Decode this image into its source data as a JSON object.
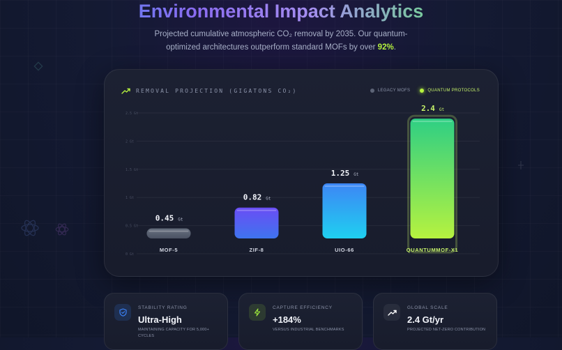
{
  "header": {
    "title": "Environmental Impact Analytics",
    "subtitle_before": "Projected cumulative atmospheric CO₂ removal by 2035. Our quantum-optimized architectures outperform standard MOFs by over ",
    "subtitle_highlight": "92%",
    "subtitle_after": "."
  },
  "chart_card": {
    "title": "REMOVAL PROJECTION (GIGATONS CO₂)",
    "title_icon": "trending-up-icon",
    "legend": [
      {
        "label": "LEGACY MOFS",
        "color": "#5d6477"
      },
      {
        "label": "QUANTUM PROTOCOLS",
        "color": "#b6f23f"
      }
    ]
  },
  "chart_data": {
    "type": "bar",
    "categories": [
      "MOF-5",
      "ZIF-8",
      "UIO-66",
      "QUANTUMMOF-X1"
    ],
    "values": [
      0.45,
      0.82,
      1.25,
      2.4
    ],
    "value_labels": [
      "0.45",
      "0.82",
      "1.25",
      "2.4"
    ],
    "value_unit": "Gt",
    "ylim": [
      0,
      2.5
    ],
    "yticks": [
      "0 Gt",
      "0.5 Gt",
      "1 Gt",
      "1.5 Gt",
      "2 Gt",
      "2.5 Gt"
    ],
    "grid": true,
    "legend_placement": "top-right",
    "bar_colors": [
      [
        "#68707f",
        "#4b5263"
      ],
      [
        "#6a4df5",
        "#3f74ee"
      ],
      [
        "#3d86f5",
        "#1fd0f0"
      ],
      [
        "#2ecf84",
        "#b6f23f"
      ]
    ],
    "highlight_color": "#c6f26a"
  },
  "stats": [
    {
      "icon": "shield-icon",
      "label": "STABILITY RATING",
      "value": "Ultra-High",
      "description": "MAINTAINING CAPACITY FOR 5,000+ CYCLES",
      "color": "#3b82f6"
    },
    {
      "icon": "lightning-icon",
      "label": "CAPTURE EFFICIENCY",
      "value": "+184%",
      "description": "VERSUS INDUSTRIAL BENCHMARKS",
      "color": "#9be53c"
    },
    {
      "icon": "trending-up-icon",
      "label": "GLOBAL SCALE",
      "value": "2.4 Gt/yr",
      "description": "PROJECTED NET-ZERO CONTRIBUTION",
      "color": "#ffffff"
    }
  ]
}
